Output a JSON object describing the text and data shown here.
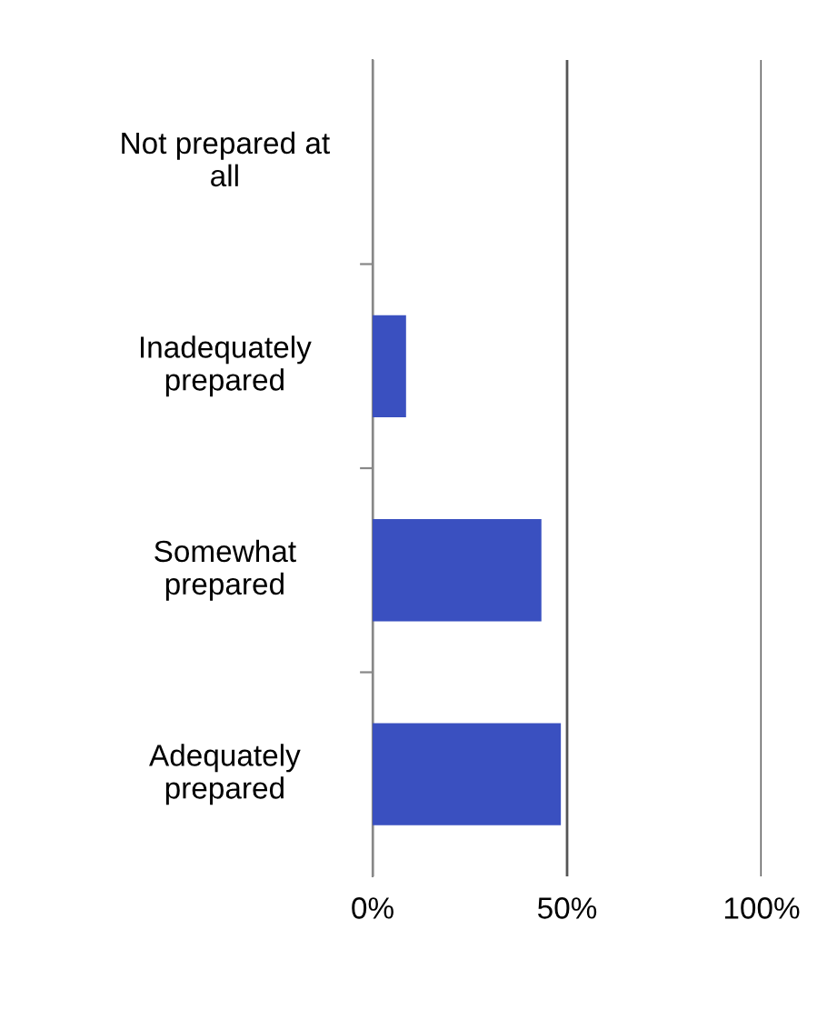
{
  "chart_data": {
    "type": "bar",
    "orientation": "horizontal",
    "categories": [
      "Not prepared at all",
      "Inadequately prepared",
      "Somewhat prepared",
      "Adequately prepared"
    ],
    "values": [
      0,
      8.6,
      43.4,
      48.4
    ],
    "color": "#3a50c0",
    "xlim": [
      0,
      100
    ],
    "xticks": [
      {
        "value": 0,
        "label": "0%"
      },
      {
        "value": 50,
        "label": "50%"
      },
      {
        "value": 100,
        "label": "100%"
      }
    ],
    "grid": "x",
    "legend": false
  }
}
